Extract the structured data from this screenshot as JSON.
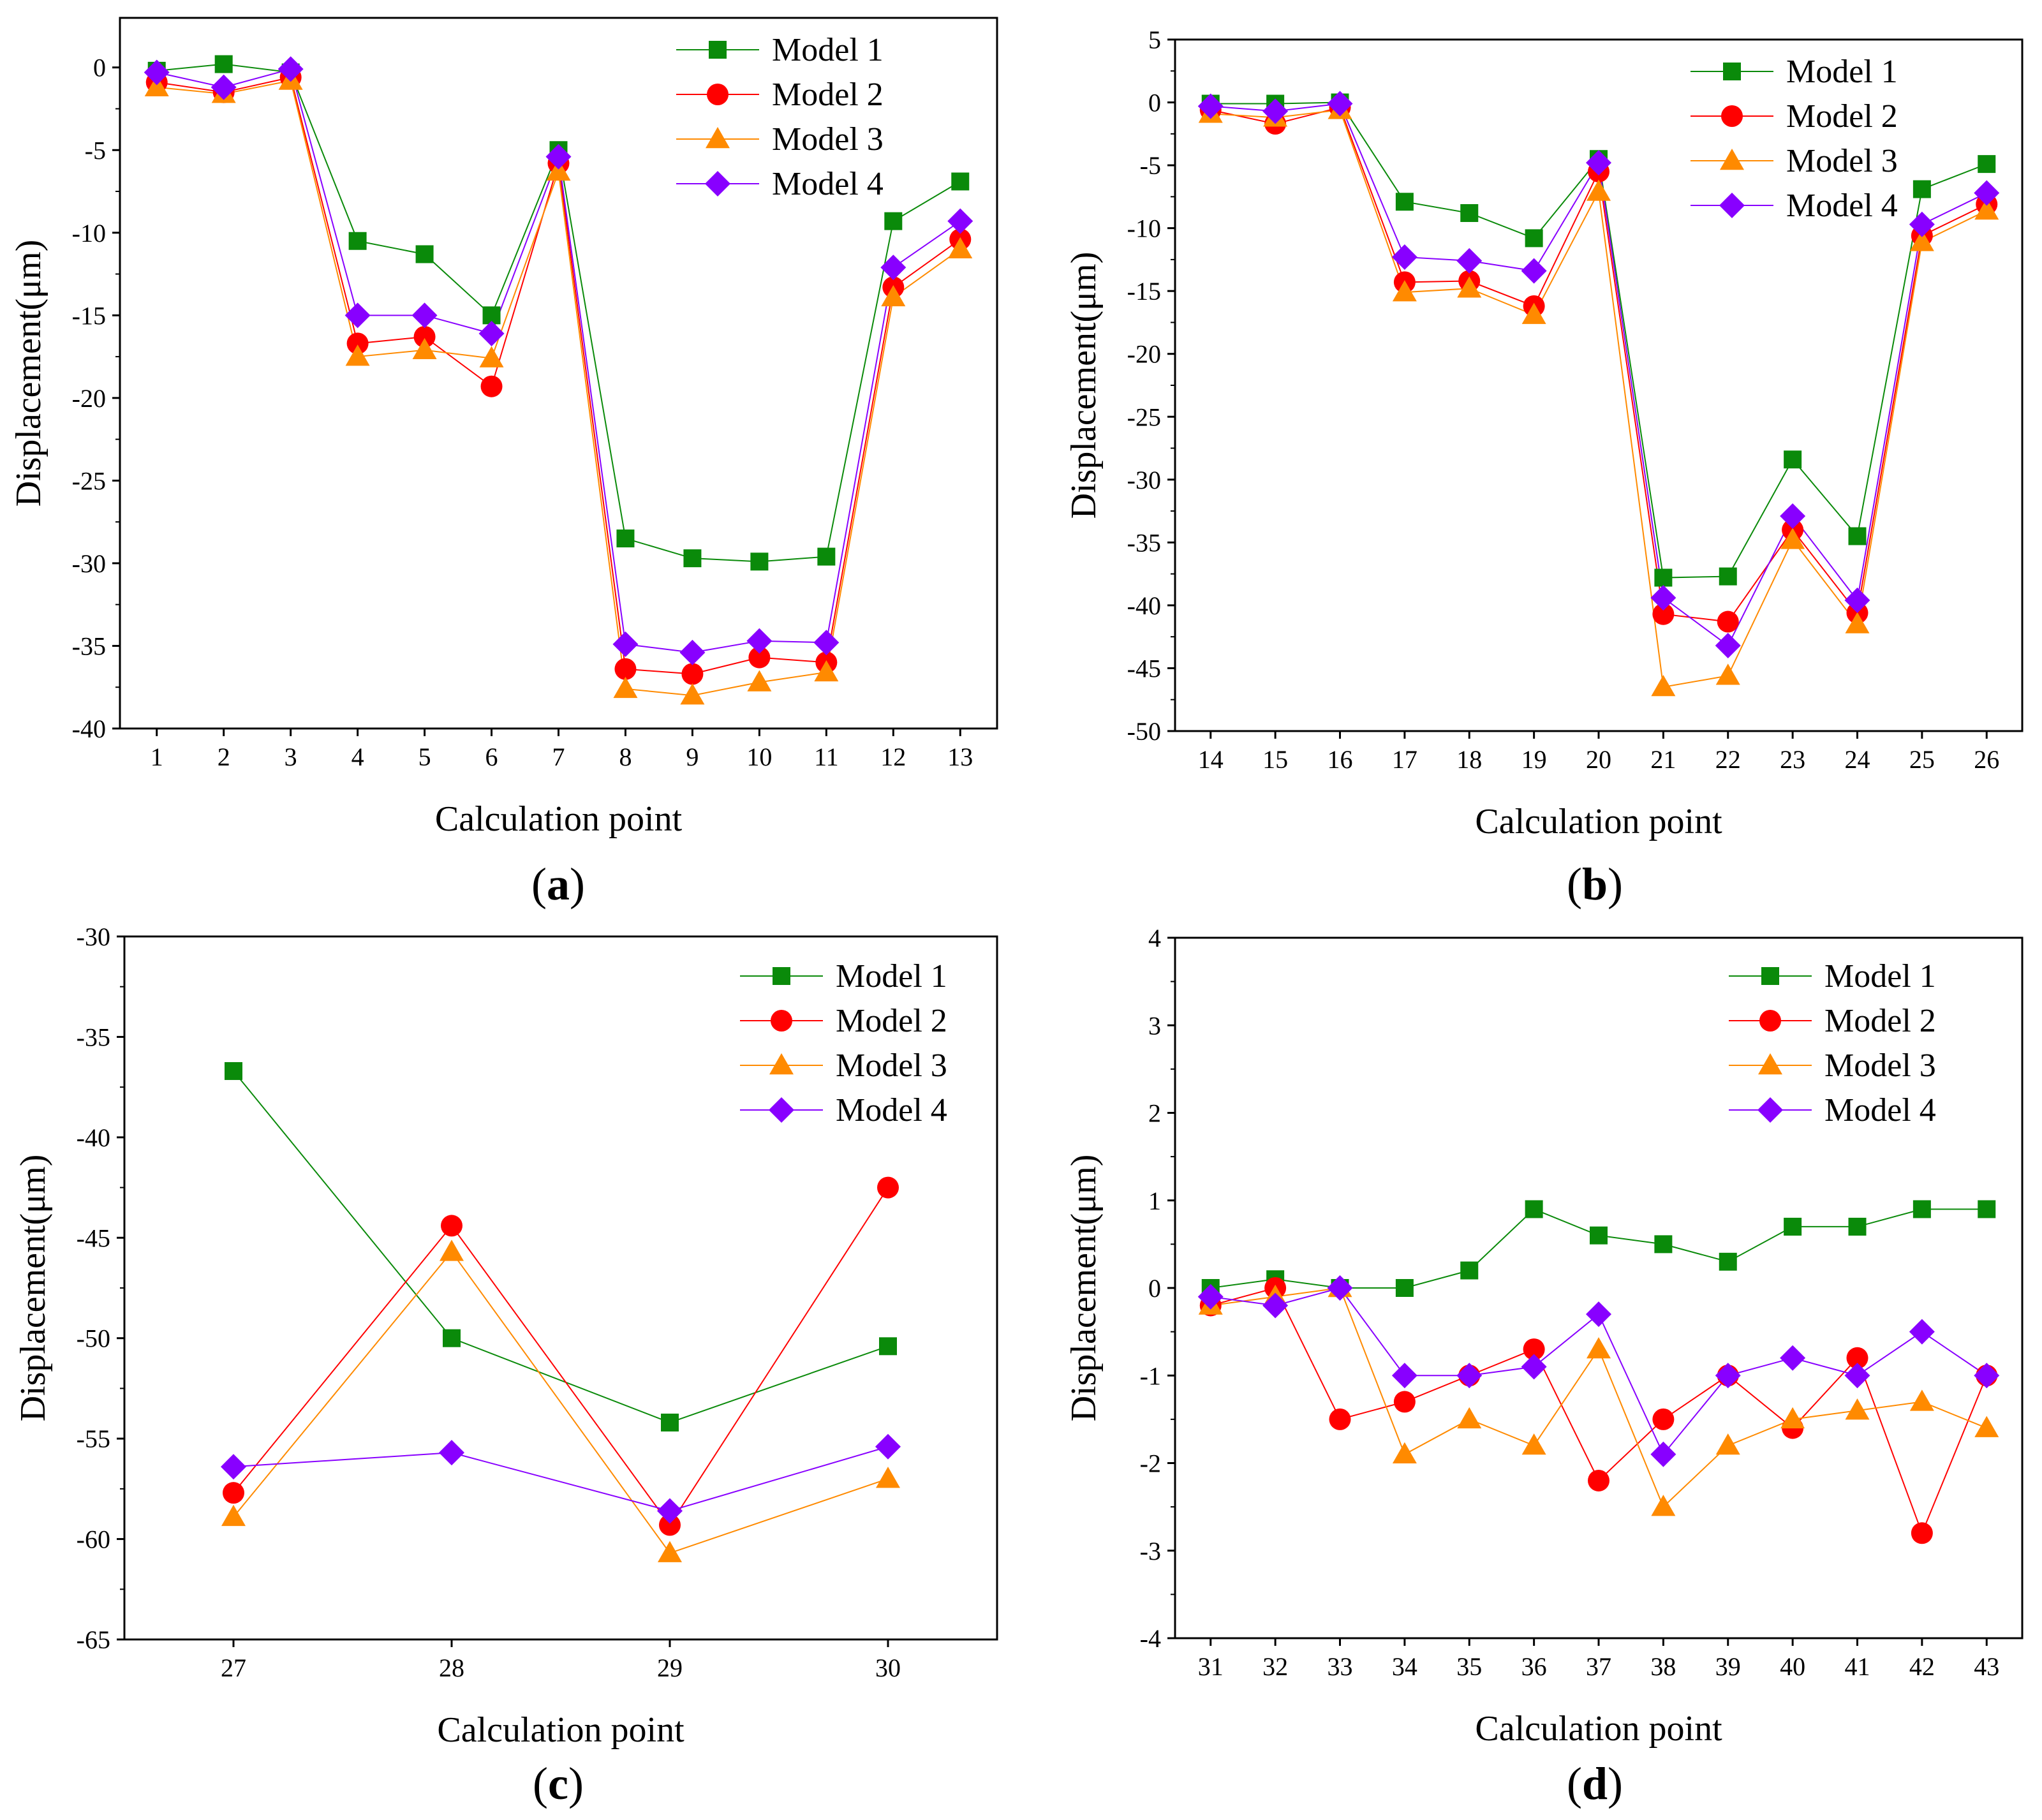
{
  "figure": {
    "legend_names": [
      "Model 1",
      "Model 2",
      "Model 3",
      "Model 4"
    ],
    "colors": [
      "#0a8a0a",
      "#ff0000",
      "#ff8a00",
      "#8800ff"
    ],
    "markers": [
      "square",
      "circle",
      "triangle",
      "diamond"
    ]
  },
  "chart_data": [
    {
      "type": "line",
      "panel": "a",
      "panel_label": "a",
      "xlabel": "Calculation point",
      "ylabel": "Displacement(μm)",
      "ylim": [
        -40,
        3
      ],
      "yticks": [
        0,
        -5,
        -10,
        -15,
        -20,
        -25,
        -30,
        -35,
        -40
      ],
      "ytick_labels": [
        "0",
        "-5",
        "-10",
        "-15",
        "-20",
        "-25",
        "-30",
        "-35",
        "-40"
      ],
      "x": [
        1,
        2,
        3,
        4,
        5,
        6,
        7,
        8,
        9,
        10,
        11,
        12,
        13
      ],
      "xtick_labels": [
        "1",
        "2",
        "3",
        "4",
        "5",
        "6",
        "7",
        "8",
        "9",
        "10",
        "11",
        "12",
        "13"
      ],
      "legend_position": "top-right",
      "series": [
        {
          "name": "Model 1",
          "values": [
            -0.2,
            0.2,
            -0.3,
            -10.5,
            -11.3,
            -15.0,
            -5.0,
            -28.5,
            -29.7,
            -29.9,
            -29.6,
            -9.3,
            -6.9
          ]
        },
        {
          "name": "Model 2",
          "values": [
            -0.9,
            -1.5,
            -0.6,
            -16.7,
            -16.3,
            -19.3,
            -5.8,
            -36.4,
            -36.7,
            -35.7,
            -36.0,
            -13.3,
            -10.4
          ]
        },
        {
          "name": "Model 3",
          "values": [
            -1.2,
            -1.6,
            -0.8,
            -17.5,
            -17.1,
            -17.6,
            -6.3,
            -37.6,
            -38.0,
            -37.2,
            -36.6,
            -13.9,
            -11.0
          ]
        },
        {
          "name": "Model 4",
          "values": [
            -0.3,
            -1.2,
            -0.1,
            -15.0,
            -15.0,
            -16.1,
            -5.4,
            -34.9,
            -35.4,
            -34.7,
            -34.8,
            -12.1,
            -9.3
          ]
        }
      ]
    },
    {
      "type": "line",
      "panel": "b",
      "panel_label": "b",
      "xlabel": "Calculation point",
      "ylabel": "Displacement(μm)",
      "ylim": [
        -50,
        5
      ],
      "yticks": [
        5,
        0,
        -5,
        -10,
        -15,
        -20,
        -25,
        -30,
        -35,
        -40,
        -45,
        -50
      ],
      "ytick_labels": [
        "5",
        "0",
        "-5",
        "-10",
        "-15",
        "-20",
        "-25",
        "-30",
        "-35",
        "-40",
        "-45",
        "-50"
      ],
      "x": [
        14,
        15,
        16,
        17,
        18,
        19,
        20,
        21,
        22,
        23,
        24,
        25,
        26
      ],
      "xtick_labels": [
        "14",
        "15",
        "16",
        "17",
        "18",
        "19",
        "20",
        "21",
        "22",
        "23",
        "24",
        "25",
        "26"
      ],
      "legend_position": "top-right",
      "series": [
        {
          "name": "Model 1",
          "values": [
            -0.1,
            -0.1,
            0.0,
            -7.9,
            -8.8,
            -10.8,
            -4.5,
            -37.8,
            -37.7,
            -28.4,
            -34.5,
            -6.9,
            -4.9
          ]
        },
        {
          "name": "Model 2",
          "values": [
            -0.6,
            -1.7,
            -0.4,
            -14.3,
            -14.2,
            -16.2,
            -5.5,
            -40.7,
            -41.3,
            -34.0,
            -40.6,
            -10.6,
            -8.1
          ]
        },
        {
          "name": "Model 3",
          "values": [
            -0.9,
            -1.2,
            -0.6,
            -15.1,
            -14.8,
            -16.9,
            -7.1,
            -46.5,
            -45.6,
            -34.8,
            -41.5,
            -11.1,
            -8.6
          ]
        },
        {
          "name": "Model 4",
          "values": [
            -0.3,
            -0.7,
            -0.1,
            -12.3,
            -12.6,
            -13.4,
            -4.8,
            -39.4,
            -43.2,
            -32.9,
            -39.6,
            -9.7,
            -7.2
          ]
        }
      ]
    },
    {
      "type": "line",
      "panel": "c",
      "panel_label": "c",
      "xlabel": "Calculation point",
      "ylabel": "Displacement(μm)",
      "ylim": [
        -65,
        -30
      ],
      "yticks": [
        -30,
        -35,
        -40,
        -45,
        -50,
        -55,
        -60,
        -65
      ],
      "ytick_labels": [
        "-30",
        "-35",
        "-40",
        "-45",
        "-50",
        "-55",
        "-60",
        "-65"
      ],
      "x": [
        27,
        28,
        29,
        30
      ],
      "xtick_labels": [
        "27",
        "28",
        "29",
        "30"
      ],
      "legend_position": "top-right",
      "series": [
        {
          "name": "Model 1",
          "values": [
            -36.7,
            -50.0,
            -54.2,
            -50.4
          ]
        },
        {
          "name": "Model 2",
          "values": [
            -57.7,
            -44.4,
            -59.3,
            -42.5
          ]
        },
        {
          "name": "Model 3",
          "values": [
            -58.9,
            -45.7,
            -60.7,
            -57.0
          ]
        },
        {
          "name": "Model 4",
          "values": [
            -56.4,
            -55.7,
            -58.6,
            -55.4
          ]
        }
      ]
    },
    {
      "type": "line",
      "panel": "d",
      "panel_label": "d",
      "xlabel": "Calculation point",
      "ylabel": "Displacement(μm)",
      "ylim": [
        -4,
        4
      ],
      "yticks": [
        4,
        3,
        2,
        1,
        0,
        -1,
        -2,
        -3,
        -4
      ],
      "ytick_labels": [
        "4",
        "3",
        "2",
        "1",
        "0",
        "-1",
        "-2",
        "-3",
        "-4"
      ],
      "x": [
        31,
        32,
        33,
        34,
        35,
        36,
        37,
        38,
        39,
        40,
        41,
        42,
        43
      ],
      "xtick_labels": [
        "31",
        "32",
        "33",
        "34",
        "35",
        "36",
        "37",
        "38",
        "39",
        "40",
        "41",
        "42",
        "43"
      ],
      "legend_position": "top-right",
      "series": [
        {
          "name": "Model 1",
          "values": [
            0.0,
            0.1,
            0.0,
            0.0,
            0.2,
            0.9,
            0.6,
            0.5,
            0.3,
            0.7,
            0.7,
            0.9,
            0.9
          ]
        },
        {
          "name": "Model 2",
          "values": [
            -0.2,
            0.0,
            -1.5,
            -1.3,
            -1.0,
            -0.7,
            -2.2,
            -1.5,
            -1.0,
            -1.6,
            -0.8,
            -2.8,
            -1.0
          ]
        },
        {
          "name": "Model 3",
          "values": [
            -0.2,
            -0.1,
            0.0,
            -1.9,
            -1.5,
            -1.8,
            -0.7,
            -2.5,
            -1.8,
            -1.5,
            -1.4,
            -1.3,
            -1.6
          ]
        },
        {
          "name": "Model 4",
          "values": [
            -0.1,
            -0.2,
            0.0,
            -1.0,
            -1.0,
            -0.9,
            -0.3,
            -1.9,
            -1.0,
            -0.8,
            -1.0,
            -0.5,
            -1.0
          ]
        }
      ]
    }
  ]
}
